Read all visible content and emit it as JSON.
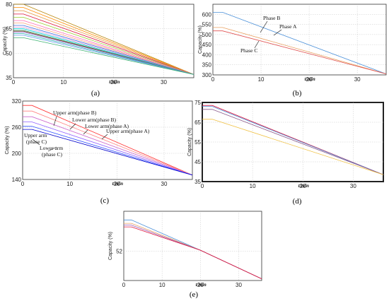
{
  "chart_data": [
    {
      "id": "a",
      "type": "line",
      "caption": "(a)",
      "ylabel": "Capacity (%)",
      "xlabel": "t/min",
      "xlim": [
        0,
        36
      ],
      "ylim": [
        35,
        80
      ],
      "xticks": [
        "0",
        "10",
        "20",
        "30"
      ],
      "yticks": [
        "35",
        "50",
        "65",
        "80"
      ],
      "series": [
        {
          "color": "#b8860b",
          "values": [
            [
              0,
              80
            ],
            [
              2,
              80
            ],
            [
              36,
              37
            ]
          ]
        },
        {
          "color": "#ff8c00",
          "values": [
            [
              0,
              78
            ],
            [
              2,
              78
            ],
            [
              36,
              37
            ]
          ]
        },
        {
          "color": "#e6a050",
          "values": [
            [
              0,
              76
            ],
            [
              2,
              76
            ],
            [
              36,
              37
            ]
          ]
        },
        {
          "color": "#dc143c",
          "values": [
            [
              0,
              74
            ],
            [
              2,
              74
            ],
            [
              36,
              37
            ]
          ]
        },
        {
          "color": "#9acd32",
          "values": [
            [
              0,
              72
            ],
            [
              2,
              72
            ],
            [
              36,
              37
            ]
          ]
        },
        {
          "color": "#ff69b4",
          "values": [
            [
              0,
              70
            ],
            [
              2,
              70
            ],
            [
              36,
              37
            ]
          ]
        },
        {
          "color": "#ffa07a",
          "values": [
            [
              0,
              68.5
            ],
            [
              2,
              68.5
            ],
            [
              36,
              37
            ]
          ]
        },
        {
          "color": "#4169e1",
          "values": [
            [
              0,
              67
            ],
            [
              2,
              67
            ],
            [
              36,
              37
            ]
          ]
        },
        {
          "color": "#dda0dd",
          "values": [
            [
              0,
              66
            ],
            [
              2,
              66
            ],
            [
              36,
              37
            ]
          ]
        },
        {
          "color": "#00ced1",
          "values": [
            [
              0,
              65
            ],
            [
              2,
              65
            ],
            [
              36,
              37
            ]
          ]
        },
        {
          "color": "#2e8b57",
          "values": [
            [
              0,
              64
            ],
            [
              2,
              64
            ],
            [
              36,
              37
            ]
          ]
        },
        {
          "color": "#8b4513",
          "values": [
            [
              0,
              63.5
            ],
            [
              2,
              63.5
            ],
            [
              36,
              37
            ]
          ]
        },
        {
          "color": "#9370db",
          "values": [
            [
              0,
              63
            ],
            [
              2,
              63
            ],
            [
              36,
              37
            ]
          ]
        },
        {
          "color": "#20b2aa",
          "values": [
            [
              0,
              62
            ],
            [
              2,
              62
            ],
            [
              36,
              37
            ]
          ]
        },
        {
          "color": "#6495ed",
          "values": [
            [
              0,
              61
            ],
            [
              2,
              61
            ],
            [
              36,
              37
            ]
          ]
        },
        {
          "color": "#3cb371",
          "values": [
            [
              0,
              59.5
            ],
            [
              2,
              59.5
            ],
            [
              36,
              37
            ]
          ]
        }
      ]
    },
    {
      "id": "b",
      "type": "line",
      "caption": "(b)",
      "ylabel": "Capacity (%)",
      "xlabel": "t/min",
      "xlim": [
        0,
        36
      ],
      "ylim": [
        300,
        650
      ],
      "xticks": [
        "0",
        "10",
        "20",
        "30"
      ],
      "yticks": [
        "600",
        "550",
        "500",
        "450",
        "400",
        "350",
        "300"
      ],
      "ytick_values": [
        600,
        550,
        500,
        450,
        400,
        350,
        300
      ],
      "series": [
        {
          "name": "Phase B",
          "color": "#4a90d9",
          "values": [
            [
              0,
              610
            ],
            [
              2,
              610
            ],
            [
              36,
              305
            ]
          ]
        },
        {
          "name": "Phase A",
          "color": "#e8a060",
          "values": [
            [
              0,
              535
            ],
            [
              2,
              535
            ],
            [
              36,
              305
            ]
          ]
        },
        {
          "name": "Phase C",
          "color": "#e05050",
          "values": [
            [
              0,
              518
            ],
            [
              2,
              518
            ],
            [
              36,
              305
            ]
          ]
        }
      ],
      "annotations": [
        "Phase B",
        "Phase A",
        "Phase C"
      ]
    },
    {
      "id": "c",
      "type": "line",
      "caption": "(c)",
      "ylabel": "Capacity (%)",
      "xlabel": "t/min",
      "xlim": [
        0,
        36
      ],
      "ylim": [
        140,
        320
      ],
      "xticks": [
        "0",
        "10",
        "20",
        "30"
      ],
      "yticks": [
        "320",
        "260",
        "200",
        "140"
      ],
      "ytick_values": [
        320,
        260,
        200,
        140
      ],
      "series": [
        {
          "name": "Upper arm(phase B)",
          "color": "#ff3030",
          "values": [
            [
              0,
              310
            ],
            [
              2,
              310
            ],
            [
              36,
              150
            ]
          ]
        },
        {
          "name": "Lower arm(phase B)",
          "color": "#ff8080",
          "values": [
            [
              0,
              297
            ],
            [
              2,
              297
            ],
            [
              36,
              150
            ]
          ]
        },
        {
          "name": "Lower arm(phase A)",
          "color": "#cc66cc",
          "values": [
            [
              0,
              284
            ],
            [
              2,
              284
            ],
            [
              36,
              150
            ]
          ]
        },
        {
          "name": "Upper arm(phase A)",
          "color": "#9060ff",
          "values": [
            [
              0,
              272
            ],
            [
              2,
              272
            ],
            [
              36,
              150
            ]
          ]
        },
        {
          "name": "Upper arm (phase C)",
          "color": "#3050ff",
          "values": [
            [
              0,
              262
            ],
            [
              2,
              262
            ],
            [
              36,
              150
            ]
          ]
        },
        {
          "name": "Lower arm (phase C)",
          "color": "#0000cc",
          "values": [
            [
              0,
              255
            ],
            [
              2,
              255
            ],
            [
              36,
              150
            ]
          ]
        }
      ],
      "annotations": [
        "Upper arm(phase B)",
        "Lower arm(phase B)",
        "Lower arm(phase A)",
        "Upper arm(phase A)",
        "Upper arm (phase C)",
        "Lower arm (phase C)"
      ]
    },
    {
      "id": "d",
      "type": "line",
      "caption": "(d)",
      "ylabel": "Capacity (%)",
      "xlabel": "t/min",
      "xlim": [
        0,
        36
      ],
      "ylim": [
        35,
        75
      ],
      "xticks": [
        "0",
        "10",
        "20",
        "30"
      ],
      "yticks": [
        "75",
        "65",
        "55",
        "45",
        "35"
      ],
      "ytick_values": [
        75,
        65,
        55,
        45,
        35
      ],
      "series": [
        {
          "color": "#dc143c",
          "values": [
            [
              0,
              73.5
            ],
            [
              2,
              73.5
            ],
            [
              36,
              38.5
            ]
          ]
        },
        {
          "color": "#4a90d9",
          "values": [
            [
              0,
              73
            ],
            [
              2,
              73
            ],
            [
              36,
              38.5
            ]
          ]
        },
        {
          "color": "#8b5a8b",
          "values": [
            [
              0,
              71.5
            ],
            [
              2,
              71.5
            ],
            [
              36,
              38.5
            ]
          ]
        },
        {
          "color": "#f0c040",
          "values": [
            [
              0,
              66.5
            ],
            [
              2,
              66.5
            ],
            [
              36,
              38.5
            ]
          ]
        }
      ]
    },
    {
      "id": "e",
      "type": "line",
      "caption": "(e)",
      "ylabel": "Capacity (%)",
      "xlabel": "t/min",
      "xlim": [
        0,
        36
      ],
      "ylim": [
        35,
        75
      ],
      "xticks": [
        "0",
        "10",
        "20",
        "30"
      ],
      "yticks": [
        "52"
      ],
      "ytick_values": [
        52
      ],
      "series": [
        {
          "color": "#4a90d9",
          "values": [
            [
              0,
              70
            ],
            [
              2,
              70
            ],
            [
              20,
              52.5
            ],
            [
              36,
              36
            ]
          ]
        },
        {
          "color": "#e8a060",
          "values": [
            [
              0,
              68
            ],
            [
              2,
              68
            ],
            [
              20,
              52.5
            ],
            [
              36,
              36
            ]
          ]
        },
        {
          "color": "#9b59b6",
          "values": [
            [
              0,
              67
            ],
            [
              2,
              67
            ],
            [
              20,
              52.5
            ],
            [
              36,
              36
            ]
          ]
        },
        {
          "color": "#dc143c",
          "values": [
            [
              0,
              66
            ],
            [
              2,
              66
            ],
            [
              20,
              52.5
            ],
            [
              36,
              36
            ]
          ]
        }
      ]
    }
  ]
}
